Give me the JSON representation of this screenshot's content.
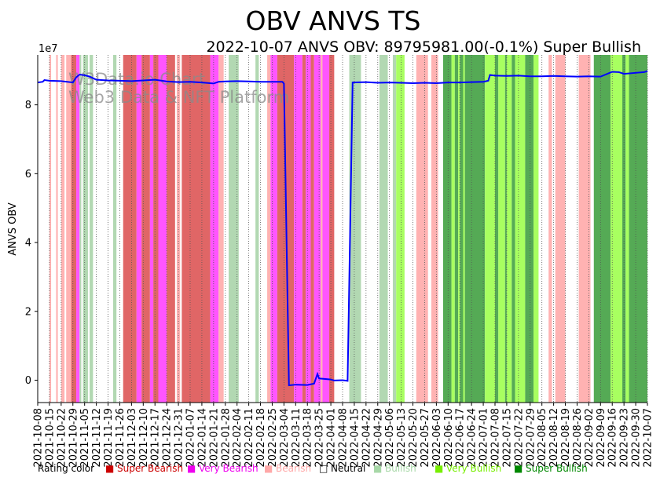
{
  "chart_data": {
    "type": "line",
    "title": "OBV ANVS TS",
    "subtitle": "2022-10-07 ANVS OBV: 89795981.00(-0.1%) Super Bullish",
    "ylabel": "ANVS OBV",
    "y_exponent_label": "1e7",
    "ylim": [
      -6500000,
      94500000
    ],
    "y_ticks": [
      0,
      20000000,
      40000000,
      60000000,
      80000000
    ],
    "y_tick_labels": [
      "0",
      "2",
      "4",
      "6",
      "8"
    ],
    "x_start": "2021-10-08",
    "x_end": "2022-10-07",
    "x_tick_labels": [
      "2021-10-08",
      "2021-10-15",
      "2021-10-22",
      "2021-10-29",
      "2021-11-05",
      "2021-11-12",
      "2021-11-19",
      "2021-11-26",
      "2021-12-03",
      "2021-12-10",
      "2021-12-17",
      "2021-12-24",
      "2021-12-31",
      "2022-01-07",
      "2022-01-14",
      "2022-01-21",
      "2022-01-28",
      "2022-02-04",
      "2022-02-11",
      "2022-02-18",
      "2022-02-25",
      "2022-03-04",
      "2022-03-11",
      "2022-03-18",
      "2022-03-25",
      "2022-04-01",
      "2022-04-08",
      "2022-04-15",
      "2022-04-22",
      "2022-04-29",
      "2022-05-06",
      "2022-05-13",
      "2022-05-20",
      "2022-05-27",
      "2022-06-03",
      "2022-06-10",
      "2022-06-17",
      "2022-06-24",
      "2022-07-01",
      "2022-07-08",
      "2022-07-15",
      "2022-07-22",
      "2022-07-29",
      "2022-08-05",
      "2022-08-12",
      "2022-08-19",
      "2022-08-26",
      "2022-09-02",
      "2022-09-09",
      "2022-09-16",
      "2022-09-23",
      "2022-09-30",
      "2022-10-07"
    ],
    "series": [
      {
        "name": "ANVS OBV",
        "color": "#0000ff",
        "points": [
          [
            "2021-10-08",
            86500000
          ],
          [
            "2021-10-11",
            86700000
          ],
          [
            "2021-10-12",
            87200000
          ],
          [
            "2021-10-15",
            87000000
          ],
          [
            "2021-10-22",
            86900000
          ],
          [
            "2021-10-29",
            86500000
          ],
          [
            "2021-10-31",
            88000000
          ],
          [
            "2021-11-02",
            88800000
          ],
          [
            "2021-11-05",
            88600000
          ],
          [
            "2021-11-08",
            88200000
          ],
          [
            "2021-11-12",
            87300000
          ],
          [
            "2021-11-19",
            87100000
          ],
          [
            "2021-11-26",
            87000000
          ],
          [
            "2021-12-03",
            86900000
          ],
          [
            "2021-12-10",
            87100000
          ],
          [
            "2021-12-17",
            87300000
          ],
          [
            "2021-12-24",
            86800000
          ],
          [
            "2021-12-31",
            86600000
          ],
          [
            "2022-01-07",
            86700000
          ],
          [
            "2022-01-14",
            86500000
          ],
          [
            "2022-01-21",
            86200000
          ],
          [
            "2022-01-24",
            86700000
          ],
          [
            "2022-01-28",
            86800000
          ],
          [
            "2022-02-04",
            86900000
          ],
          [
            "2022-02-11",
            86800000
          ],
          [
            "2022-02-18",
            86700000
          ],
          [
            "2022-02-25",
            86700000
          ],
          [
            "2022-03-03",
            86700000
          ],
          [
            "2022-03-04",
            86200000
          ],
          [
            "2022-03-07",
            -1500000
          ],
          [
            "2022-03-11",
            -1300000
          ],
          [
            "2022-03-18",
            -1400000
          ],
          [
            "2022-03-22",
            -1000000
          ],
          [
            "2022-03-24",
            1800000
          ],
          [
            "2022-03-25",
            500000
          ],
          [
            "2022-04-01",
            200000
          ],
          [
            "2022-04-03",
            -100000
          ],
          [
            "2022-04-08",
            0
          ],
          [
            "2022-04-11",
            -200000
          ],
          [
            "2022-04-14",
            86500000
          ],
          [
            "2022-04-22",
            86600000
          ],
          [
            "2022-04-29",
            86400000
          ],
          [
            "2022-05-06",
            86500000
          ],
          [
            "2022-05-13",
            86400000
          ],
          [
            "2022-05-20",
            86300000
          ],
          [
            "2022-05-27",
            86400000
          ],
          [
            "2022-06-03",
            86300000
          ],
          [
            "2022-06-10",
            86500000
          ],
          [
            "2022-06-17",
            86500000
          ],
          [
            "2022-06-24",
            86600000
          ],
          [
            "2022-07-01",
            86700000
          ],
          [
            "2022-07-04",
            87000000
          ],
          [
            "2022-07-05",
            88700000
          ],
          [
            "2022-07-08",
            88500000
          ],
          [
            "2022-07-15",
            88400000
          ],
          [
            "2022-07-22",
            88500000
          ],
          [
            "2022-07-29",
            88300000
          ],
          [
            "2022-08-05",
            88300000
          ],
          [
            "2022-08-12",
            88400000
          ],
          [
            "2022-08-19",
            88300000
          ],
          [
            "2022-08-26",
            88200000
          ],
          [
            "2022-09-02",
            88300000
          ],
          [
            "2022-09-09",
            88200000
          ],
          [
            "2022-09-16",
            89600000
          ],
          [
            "2022-09-20",
            89500000
          ],
          [
            "2022-09-23",
            89000000
          ],
          [
            "2022-09-30",
            89300000
          ],
          [
            "2022-10-05",
            89500000
          ],
          [
            "2022-10-07",
            89795981
          ]
        ]
      }
    ],
    "rating_bands": [
      [
        "2021-10-15",
        "2021-10-16",
        "Bearish"
      ],
      [
        "2021-10-19",
        "2021-10-20",
        "Bearish"
      ],
      [
        "2021-10-22",
        "2021-10-24",
        "Bearish"
      ],
      [
        "2021-10-25",
        "2021-10-28",
        "Bearish"
      ],
      [
        "2021-10-28",
        "2021-10-31",
        "Super Bearish"
      ],
      [
        "2021-10-31",
        "2021-11-02",
        "Very Bearish"
      ],
      [
        "2021-11-02",
        "2021-11-03",
        "Bullish"
      ],
      [
        "2021-11-04",
        "2021-11-07",
        "Bullish"
      ],
      [
        "2021-11-08",
        "2021-11-10",
        "Bullish"
      ],
      [
        "2021-11-22",
        "2021-11-24",
        "Bullish"
      ],
      [
        "2021-11-28",
        "2021-12-06",
        "Super Bearish"
      ],
      [
        "2021-12-06",
        "2021-12-09",
        "Very Bearish"
      ],
      [
        "2021-12-09",
        "2021-12-14",
        "Super Bearish"
      ],
      [
        "2021-12-14",
        "2021-12-16",
        "Very Bearish"
      ],
      [
        "2021-12-16",
        "2021-12-19",
        "Super Bearish"
      ],
      [
        "2021-12-19",
        "2021-12-24",
        "Very Bearish"
      ],
      [
        "2021-12-24",
        "2021-12-29",
        "Super Bearish"
      ],
      [
        "2021-12-30",
        "2022-01-01",
        "Bearish"
      ],
      [
        "2022-01-02",
        "2022-01-19",
        "Super Bearish"
      ],
      [
        "2022-01-19",
        "2022-01-24",
        "Very Bearish"
      ],
      [
        "2022-01-24",
        "2022-01-27",
        "Bearish"
      ],
      [
        "2022-01-30",
        "2022-02-05",
        "Bullish"
      ],
      [
        "2022-02-15",
        "2022-02-17",
        "Bullish"
      ],
      [
        "2022-02-22",
        "2022-02-24",
        "Bearish"
      ],
      [
        "2022-02-24",
        "2022-02-28",
        "Very Bearish"
      ],
      [
        "2022-02-28",
        "2022-03-10",
        "Super Bearish"
      ],
      [
        "2022-03-10",
        "2022-03-15",
        "Very Bearish"
      ],
      [
        "2022-03-15",
        "2022-03-17",
        "Super Bearish"
      ],
      [
        "2022-03-17",
        "2022-03-20",
        "Very Bearish"
      ],
      [
        "2022-03-20",
        "2022-03-22",
        "Super Bearish"
      ],
      [
        "2022-03-22",
        "2022-03-26",
        "Very Bearish"
      ],
      [
        "2022-03-26",
        "2022-03-27",
        "Bearish"
      ],
      [
        "2022-03-27",
        "2022-03-31",
        "Very Bearish"
      ],
      [
        "2022-03-31",
        "2022-04-03",
        "Super Bearish"
      ],
      [
        "2022-04-12",
        "2022-04-19",
        "Bullish"
      ],
      [
        "2022-04-30",
        "2022-05-05",
        "Bullish"
      ],
      [
        "2022-05-08",
        "2022-05-10",
        "Bullish"
      ],
      [
        "2022-05-10",
        "2022-05-15",
        "Very Bullish"
      ],
      [
        "2022-05-22",
        "2022-05-29",
        "Bearish"
      ],
      [
        "2022-05-31",
        "2022-06-04",
        "Bearish"
      ],
      [
        "2022-06-07",
        "2022-06-12",
        "Super Bullish"
      ],
      [
        "2022-06-12",
        "2022-06-14",
        "Very Bullish"
      ],
      [
        "2022-06-14",
        "2022-06-16",
        "Super Bullish"
      ],
      [
        "2022-06-16",
        "2022-06-17",
        "Very Bullish"
      ],
      [
        "2022-06-17",
        "2022-06-19",
        "Super Bullish"
      ],
      [
        "2022-06-19",
        "2022-06-20",
        "Very Bullish"
      ],
      [
        "2022-06-20",
        "2022-07-02",
        "Super Bullish"
      ],
      [
        "2022-07-02",
        "2022-07-08",
        "Very Bullish"
      ],
      [
        "2022-07-08",
        "2022-07-10",
        "Super Bullish"
      ],
      [
        "2022-07-10",
        "2022-07-14",
        "Very Bullish"
      ],
      [
        "2022-07-14",
        "2022-07-15",
        "Super Bullish"
      ],
      [
        "2022-07-15",
        "2022-07-18",
        "Very Bullish"
      ],
      [
        "2022-07-18",
        "2022-07-20",
        "Super Bullish"
      ],
      [
        "2022-07-20",
        "2022-07-26",
        "Very Bullish"
      ],
      [
        "2022-07-26",
        "2022-07-31",
        "Super Bullish"
      ],
      [
        "2022-07-31",
        "2022-08-03",
        "Very Bullish"
      ],
      [
        "2022-08-09",
        "2022-08-11",
        "Bearish"
      ],
      [
        "2022-08-13",
        "2022-08-19",
        "Bearish"
      ],
      [
        "2022-08-27",
        "2022-09-03",
        "Bearish"
      ],
      [
        "2022-09-05",
        "2022-09-15",
        "Super Bullish"
      ],
      [
        "2022-09-15",
        "2022-09-22",
        "Very Bullish"
      ],
      [
        "2022-09-22",
        "2022-09-24",
        "Super Bullish"
      ],
      [
        "2022-09-24",
        "2022-09-26",
        "Very Bullish"
      ],
      [
        "2022-09-26",
        "2022-10-07",
        "Super Bullish"
      ]
    ],
    "rating_colors": {
      "Super Bearish": "#e06666",
      "Very Bearish": "#ff55ff",
      "Bearish": "#ffb2b2",
      "Neutral": "#ffffff",
      "Bullish": "#b2d8b2",
      "Very Bullish": "#a8ff60",
      "Super Bullish": "#55aa55"
    },
    "legend": {
      "label": "Rating color",
      "placement": "bottom",
      "items": [
        {
          "name": "Super Bearish",
          "color": "#cc0000"
        },
        {
          "name": "Very Bearish",
          "color": "#ee00ee"
        },
        {
          "name": "Bearish",
          "color": "#ffa8a8"
        },
        {
          "name": "Neutral",
          "color": "#000000"
        },
        {
          "name": "Bullish",
          "color": "#a8d8a8"
        },
        {
          "name": "Very Bullish",
          "color": "#77ee00"
        },
        {
          "name": "Super Bullish",
          "color": "#008800"
        }
      ]
    },
    "watermark": [
      "W3Data.io Chart",
      "Web3 Data & NFT Platform"
    ],
    "grid": {
      "x": true,
      "y": false
    }
  }
}
